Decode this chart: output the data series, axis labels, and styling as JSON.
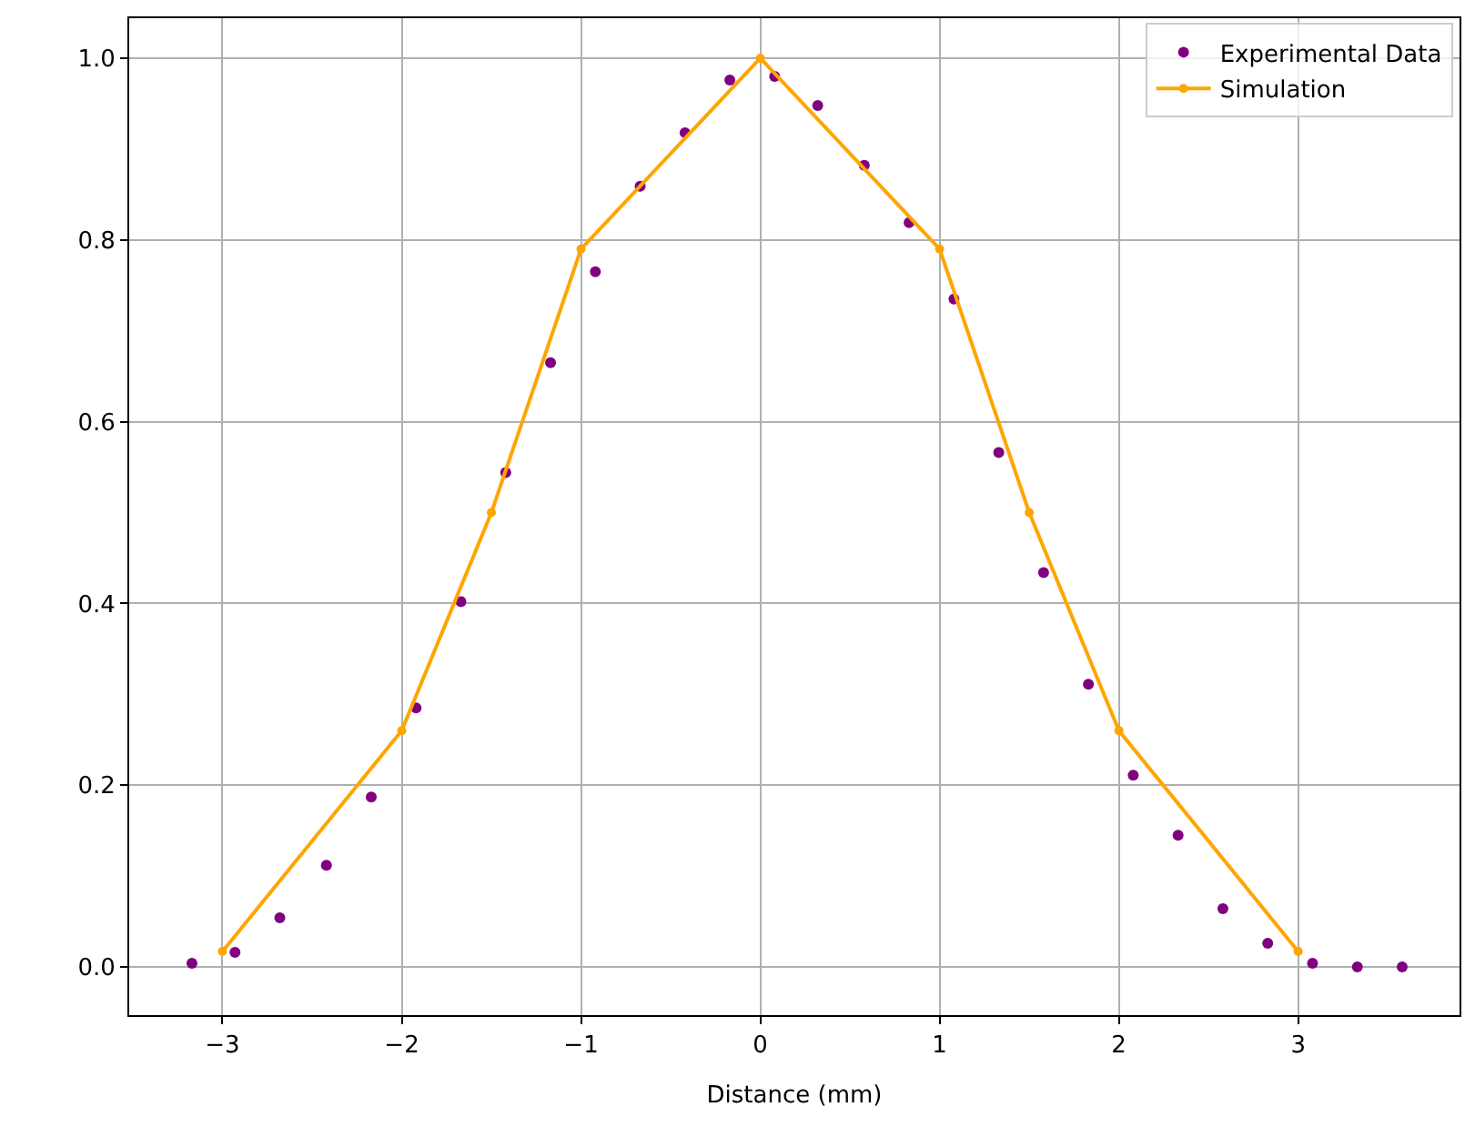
{
  "chart_data": {
    "type": "scatter",
    "xlabel": "Distance (mm)",
    "xlim": [
      -3.52,
      3.9
    ],
    "ylim": [
      -0.053,
      1.044
    ],
    "xticks": [
      {
        "value": -3,
        "label": "−3"
      },
      {
        "value": -2,
        "label": "−2"
      },
      {
        "value": -1,
        "label": "−1"
      },
      0,
      1,
      2,
      3
    ],
    "yticks": [
      {
        "value": 0,
        "label": "0.0"
      },
      {
        "value": 0.2,
        "label": "0.2"
      },
      {
        "value": 0.4,
        "label": "0.4"
      },
      {
        "value": 0.6,
        "label": "0.6"
      },
      {
        "value": 0.8,
        "label": "0.8"
      },
      {
        "value": 1,
        "label": "1.0"
      }
    ],
    "grid": true,
    "legend": "top right",
    "series": [
      {
        "name": "Experimental Data",
        "marker": "circle",
        "color": "#800080",
        "x": [
          -3.17,
          -2.93,
          -2.68,
          -2.42,
          -2.17,
          -1.92,
          -1.67,
          -1.42,
          -1.17,
          -0.92,
          -0.67,
          -0.42,
          -0.17,
          0.08,
          0.32,
          0.58,
          0.83,
          1.08,
          1.33,
          1.58,
          1.83,
          2.08,
          2.33,
          2.58,
          2.83,
          3.08,
          3.33,
          3.58
        ],
        "values": [
          0.004,
          0.016,
          0.054,
          0.112,
          0.187,
          0.285,
          0.402,
          0.544,
          0.665,
          0.765,
          0.859,
          0.918,
          0.976,
          0.98,
          0.948,
          0.882,
          0.819,
          0.735,
          0.566,
          0.434,
          0.311,
          0.211,
          0.145,
          0.064,
          0.026,
          0.004,
          0.0,
          0.0
        ]
      },
      {
        "name": "Simulation",
        "type": "line",
        "marker": "circle",
        "line_style": "solid",
        "color": "#ffa500",
        "x": [
          -3,
          -2,
          -1.5,
          -1,
          0,
          1,
          1.5,
          2,
          3
        ],
        "values": [
          0.017,
          0.26,
          0.5,
          0.79,
          1.0,
          0.79,
          0.5,
          0.26,
          0.017
        ]
      }
    ]
  }
}
